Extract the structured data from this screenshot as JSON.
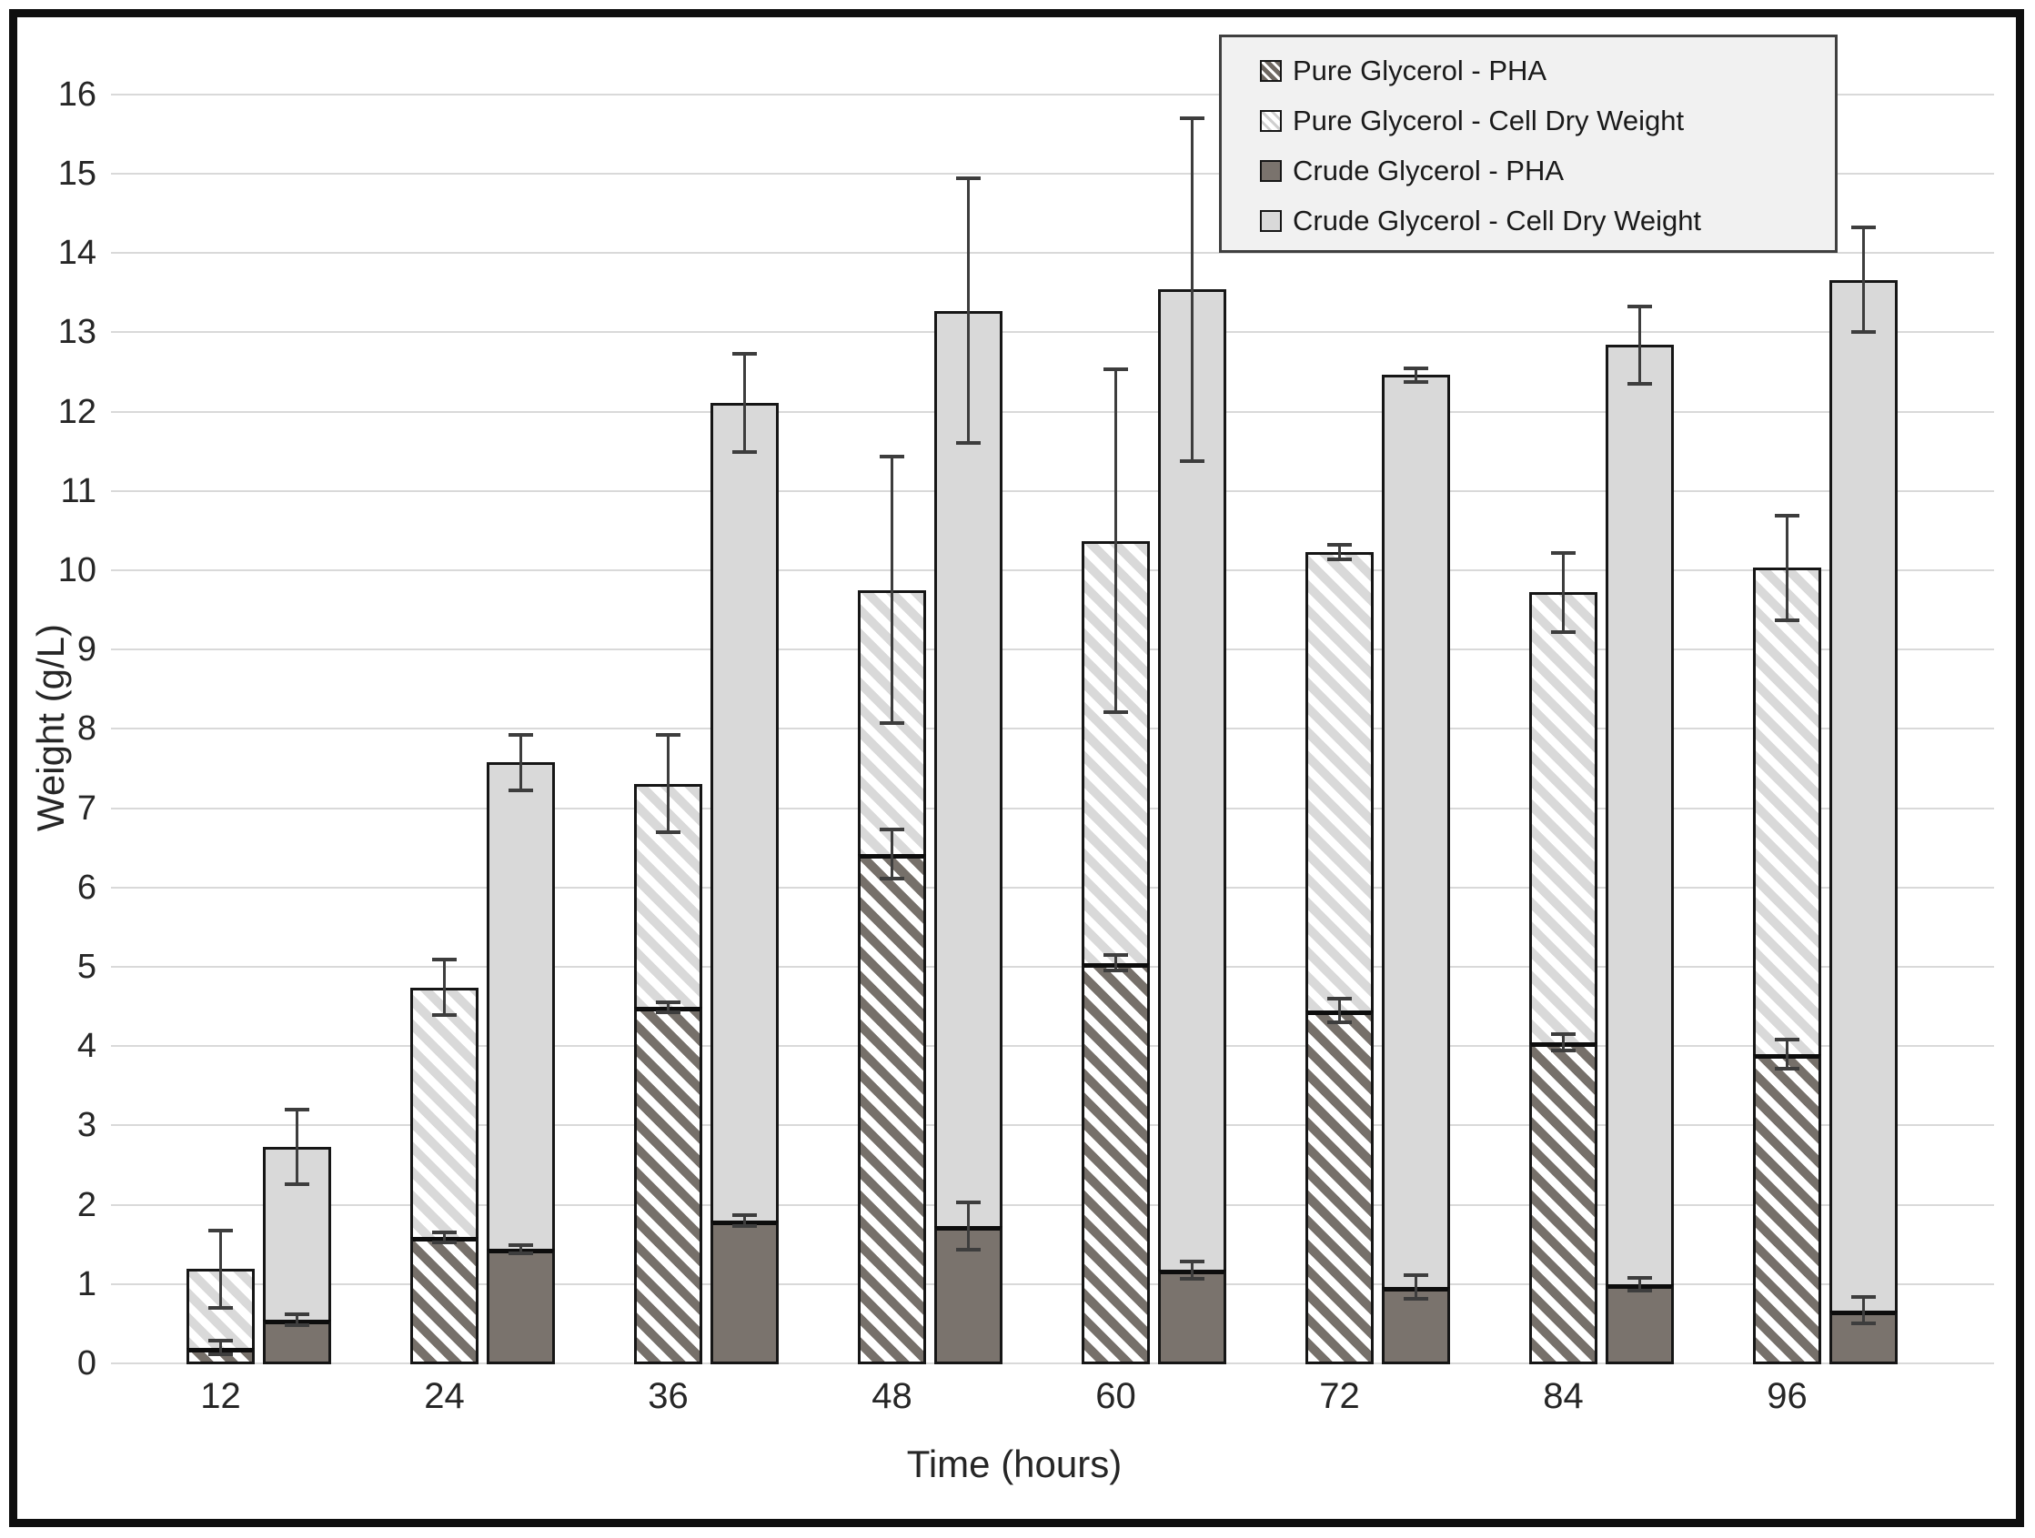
{
  "chart_data": {
    "type": "bar",
    "stacked": true,
    "title": "",
    "xlabel": "Time (hours)",
    "ylabel": "Weight (g/L)",
    "ylim": [
      0,
      16
    ],
    "ytick_step": 1,
    "grid": true,
    "legend_position": "top-right",
    "categories": [
      "12",
      "24",
      "36",
      "48",
      "60",
      "72",
      "84",
      "96"
    ],
    "series": [
      {
        "name": "Pure Glycerol - PHA",
        "bar": "pure",
        "role": "bottom",
        "pattern": "hatch-dark",
        "values": [
          0.2,
          1.59,
          4.49,
          6.42,
          5.05,
          4.45,
          4.05,
          3.9
        ],
        "errors": [
          0.09,
          0.06,
          0.06,
          0.31,
          0.1,
          0.15,
          0.1,
          0.18
        ]
      },
      {
        "name": "Pure Glycerol - Cell Dry Weight",
        "bar": "pure",
        "role": "total",
        "pattern": "hatch-light",
        "values": [
          1.19,
          4.74,
          7.31,
          9.75,
          10.37,
          10.23,
          9.72,
          10.03
        ],
        "errors": [
          0.49,
          0.35,
          0.61,
          1.68,
          2.16,
          0.09,
          0.5,
          0.66
        ]
      },
      {
        "name": "Crude Glycerol - PHA",
        "bar": "crude",
        "role": "bottom",
        "pattern": "solid-dark",
        "values": [
          0.55,
          1.44,
          1.8,
          1.73,
          1.18,
          0.96,
          1.0,
          0.67
        ],
        "errors": [
          0.07,
          0.05,
          0.07,
          0.3,
          0.11,
          0.15,
          0.08,
          0.17
        ]
      },
      {
        "name": "Crude Glycerol - Cell Dry Weight",
        "bar": "crude",
        "role": "total",
        "pattern": "solid-light",
        "values": [
          2.73,
          7.58,
          12.11,
          13.27,
          13.54,
          12.46,
          12.84,
          13.66
        ],
        "errors": [
          0.47,
          0.35,
          0.62,
          1.67,
          2.16,
          0.09,
          0.49,
          0.66
        ]
      }
    ]
  },
  "colors": {
    "bar_dark": "#7a736d",
    "bar_light": "#d9d9d9",
    "gridline": "#d9d9d9",
    "error_bar": "#3d3d3d",
    "legend_background": "#f1f1f1",
    "frame_border": "#0f0f0f",
    "text": "#262626"
  }
}
